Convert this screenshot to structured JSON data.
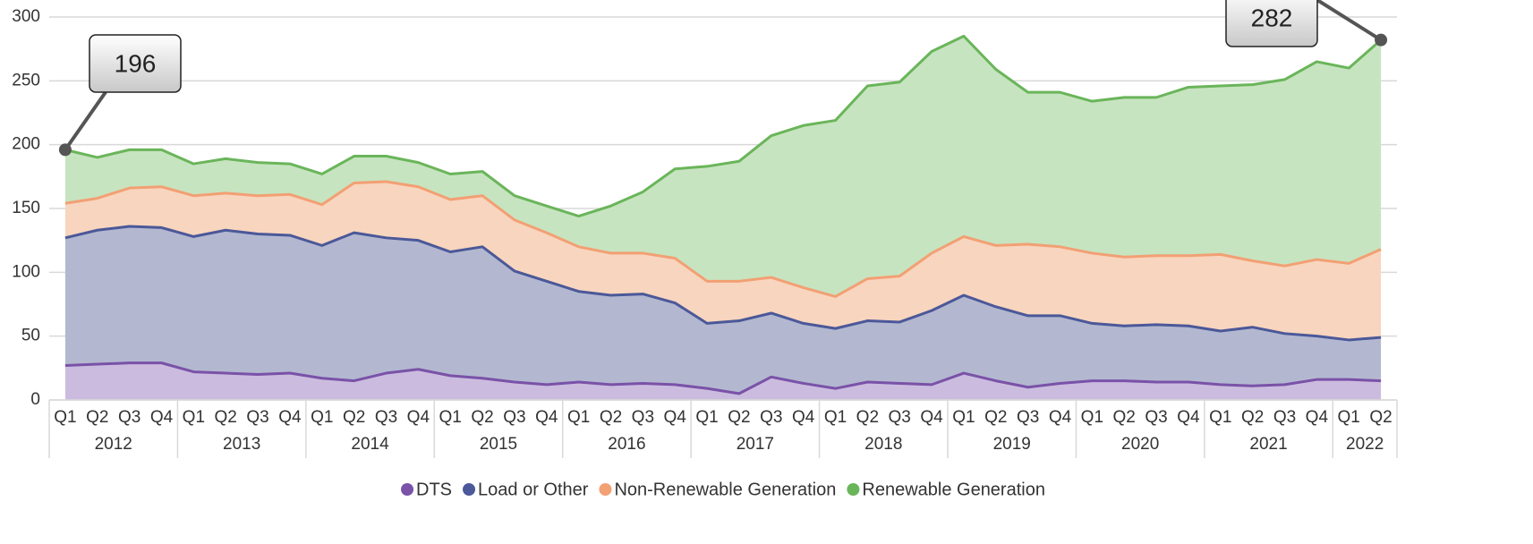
{
  "chart_data": {
    "type": "stacked_area",
    "categories": [
      "Q1",
      "Q2",
      "Q3",
      "Q4",
      "Q1",
      "Q2",
      "Q3",
      "Q4",
      "Q1",
      "Q2",
      "Q3",
      "Q4",
      "Q1",
      "Q2",
      "Q3",
      "Q4",
      "Q1",
      "Q2",
      "Q3",
      "Q4",
      "Q1",
      "Q2",
      "Q3",
      "Q4",
      "Q1",
      "Q2",
      "Q3",
      "Q4",
      "Q1",
      "Q2",
      "Q3",
      "Q4",
      "Q1",
      "Q2",
      "Q3",
      "Q4",
      "Q1",
      "Q2",
      "Q3",
      "Q4",
      "Q1",
      "Q2"
    ],
    "years": [
      "2012",
      "2013",
      "2014",
      "2015",
      "2016",
      "2017",
      "2018",
      "2019",
      "2020",
      "2021",
      "2022"
    ],
    "series": [
      {
        "name": "DTS",
        "color": "#7a52a8",
        "fill": "#cbbcdf",
        "values": [
          27,
          28,
          29,
          29,
          22,
          21,
          20,
          21,
          17,
          15,
          21,
          24,
          19,
          17,
          14,
          12,
          14,
          12,
          13,
          12,
          9,
          5,
          18,
          13,
          9,
          14,
          13,
          12,
          21,
          15,
          10,
          13,
          15,
          15,
          14,
          14,
          12,
          11,
          12,
          16,
          16,
          15
        ]
      },
      {
        "name": "Load or Other",
        "color": "#4b5899",
        "fill": "#b3b8d0",
        "values": [
          100,
          105,
          107,
          106,
          106,
          112,
          110,
          108,
          104,
          116,
          106,
          101,
          97,
          103,
          87,
          81,
          71,
          70,
          70,
          64,
          51,
          57,
          50,
          47,
          47,
          48,
          48,
          58,
          61,
          58,
          56,
          53,
          45,
          43,
          45,
          44,
          42,
          46,
          40,
          34,
          31,
          34
        ]
      },
      {
        "name": "Non-Renewable Generation",
        "color": "#f2a074",
        "fill": "#f8d5be",
        "values": [
          27,
          25,
          30,
          32,
          32,
          29,
          30,
          32,
          32,
          39,
          44,
          42,
          41,
          40,
          40,
          38,
          35,
          33,
          32,
          35,
          33,
          31,
          28,
          28,
          25,
          33,
          36,
          45,
          46,
          48,
          56,
          54,
          55,
          54,
          54,
          55,
          60,
          52,
          53,
          60,
          60,
          69
        ]
      },
      {
        "name": "Renewable Generation",
        "color": "#6ab55a",
        "fill": "#c7e4c0",
        "values": [
          42,
          32,
          30,
          29,
          25,
          27,
          26,
          24,
          24,
          21,
          20,
          19,
          20,
          19,
          19,
          21,
          24,
          37,
          48,
          70,
          90,
          94,
          111,
          127,
          138,
          151,
          152,
          158,
          157,
          138,
          119,
          121,
          119,
          125,
          124,
          132,
          132,
          138,
          146,
          155,
          153,
          164
        ]
      }
    ],
    "annotations": [
      {
        "value": 196,
        "label": "196"
      },
      {
        "value": 282,
        "label": "282"
      }
    ],
    "ylim": [
      0,
      300
    ],
    "yticks": [
      0,
      50,
      100,
      150,
      200,
      250,
      300
    ],
    "grid": true,
    "legend": "bottom"
  }
}
